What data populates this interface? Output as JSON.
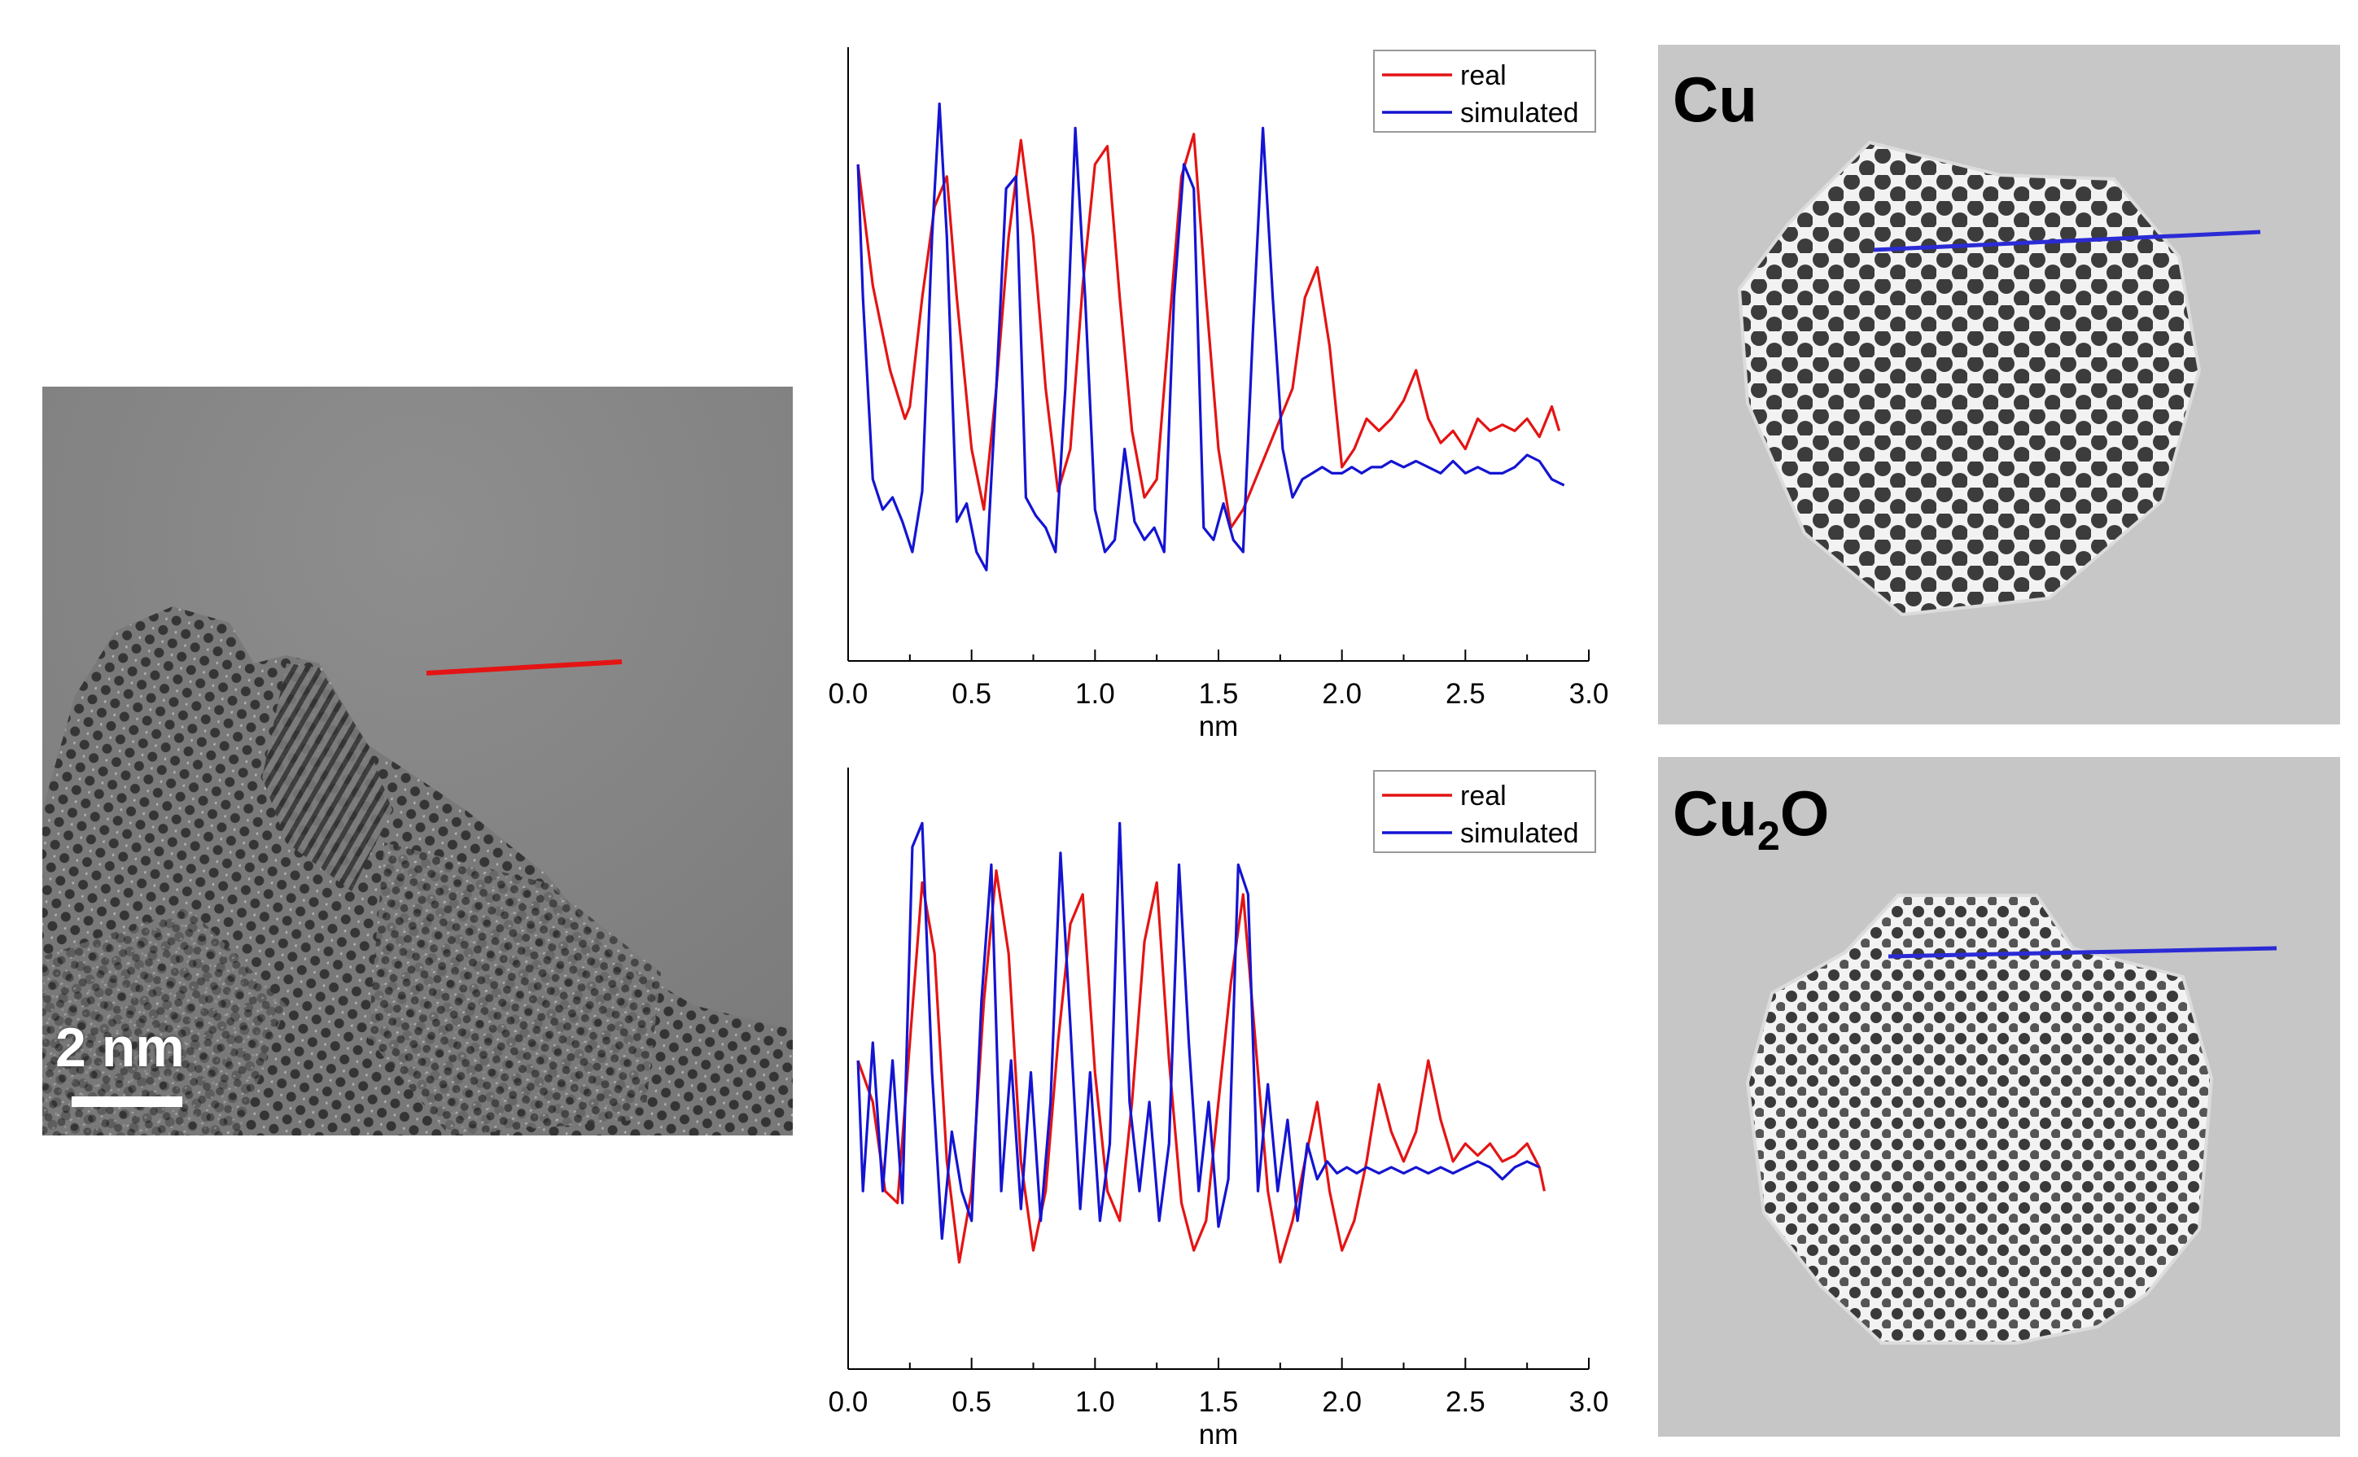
{
  "figure": {
    "tem_image": {
      "scale_bar_label": "2 nm",
      "profile_line_color": "#e41414"
    },
    "simulations": [
      {
        "label_main": "Cu",
        "label_sub": "",
        "label_tail": "",
        "profile_line_color": "#2b2bd6"
      },
      {
        "label_main": "Cu",
        "label_sub": "2",
        "label_tail": "O",
        "profile_line_color": "#2b2bd6"
      }
    ]
  },
  "chart_data": [
    {
      "type": "line",
      "title": "",
      "xlabel": "nm",
      "ylabel": "",
      "xlim": [
        0.0,
        3.0
      ],
      "ylim": [
        0,
        1
      ],
      "xticks": [
        "0.0",
        "0.5",
        "1.0",
        "1.5",
        "2.0",
        "2.5",
        "3.0"
      ],
      "legend": {
        "position": "top-right",
        "entries": [
          "real",
          "simulated"
        ]
      },
      "series": [
        {
          "name": "real",
          "color": "#e41414",
          "x": [
            0.04,
            0.1,
            0.17,
            0.23,
            0.25,
            0.3,
            0.35,
            0.4,
            0.44,
            0.5,
            0.55,
            0.6,
            0.65,
            0.7,
            0.75,
            0.8,
            0.85,
            0.9,
            0.95,
            1.0,
            1.05,
            1.1,
            1.15,
            1.2,
            1.25,
            1.3,
            1.35,
            1.4,
            1.45,
            1.5,
            1.55,
            1.6,
            1.65,
            1.7,
            1.75,
            1.8,
            1.85,
            1.9,
            1.95,
            2.0,
            2.05,
            2.1,
            2.15,
            2.2,
            2.25,
            2.3,
            2.35,
            2.4,
            2.45,
            2.5,
            2.55,
            2.6,
            2.65,
            2.7,
            2.75,
            2.8,
            2.85,
            2.88
          ],
          "y": [
            0.82,
            0.62,
            0.48,
            0.4,
            0.42,
            0.6,
            0.75,
            0.8,
            0.6,
            0.35,
            0.25,
            0.45,
            0.7,
            0.86,
            0.7,
            0.45,
            0.28,
            0.35,
            0.62,
            0.82,
            0.85,
            0.6,
            0.38,
            0.27,
            0.3,
            0.55,
            0.8,
            0.87,
            0.6,
            0.35,
            0.22,
            0.25,
            0.3,
            0.35,
            0.4,
            0.45,
            0.6,
            0.65,
            0.52,
            0.32,
            0.35,
            0.4,
            0.38,
            0.4,
            0.43,
            0.48,
            0.4,
            0.36,
            0.38,
            0.35,
            0.4,
            0.38,
            0.39,
            0.38,
            0.4,
            0.37,
            0.42,
            0.38
          ]
        },
        {
          "name": "simulated",
          "color": "#1414d2",
          "x": [
            0.04,
            0.06,
            0.1,
            0.14,
            0.18,
            0.22,
            0.26,
            0.3,
            0.34,
            0.37,
            0.4,
            0.44,
            0.48,
            0.52,
            0.56,
            0.6,
            0.64,
            0.68,
            0.72,
            0.76,
            0.8,
            0.84,
            0.88,
            0.92,
            0.96,
            1.0,
            1.04,
            1.08,
            1.12,
            1.16,
            1.2,
            1.24,
            1.28,
            1.32,
            1.36,
            1.4,
            1.44,
            1.48,
            1.52,
            1.56,
            1.6,
            1.64,
            1.68,
            1.72,
            1.76,
            1.8,
            1.84,
            1.88,
            1.92,
            1.96,
            2.0,
            2.04,
            2.08,
            2.12,
            2.16,
            2.2,
            2.25,
            2.3,
            2.35,
            2.4,
            2.45,
            2.5,
            2.55,
            2.6,
            2.65,
            2.7,
            2.75,
            2.8,
            2.85,
            2.9
          ],
          "y": [
            0.82,
            0.6,
            0.3,
            0.25,
            0.27,
            0.23,
            0.18,
            0.28,
            0.7,
            0.92,
            0.7,
            0.23,
            0.26,
            0.18,
            0.15,
            0.45,
            0.78,
            0.8,
            0.27,
            0.24,
            0.22,
            0.18,
            0.45,
            0.88,
            0.6,
            0.25,
            0.18,
            0.2,
            0.35,
            0.23,
            0.2,
            0.22,
            0.18,
            0.6,
            0.82,
            0.78,
            0.22,
            0.2,
            0.26,
            0.2,
            0.18,
            0.55,
            0.88,
            0.6,
            0.35,
            0.27,
            0.3,
            0.31,
            0.32,
            0.31,
            0.31,
            0.32,
            0.31,
            0.32,
            0.32,
            0.33,
            0.32,
            0.33,
            0.32,
            0.31,
            0.33,
            0.31,
            0.32,
            0.31,
            0.31,
            0.32,
            0.34,
            0.33,
            0.3,
            0.29
          ]
        }
      ]
    },
    {
      "type": "line",
      "title": "",
      "xlabel": "nm",
      "ylabel": "",
      "xlim": [
        0.0,
        3.0
      ],
      "ylim": [
        0,
        1
      ],
      "xticks": [
        "0.0",
        "0.5",
        "1.0",
        "1.5",
        "2.0",
        "2.5",
        "3.0"
      ],
      "legend": {
        "position": "top-right",
        "entries": [
          "real",
          "simulated"
        ]
      },
      "series": [
        {
          "name": "real",
          "color": "#e41414",
          "x": [
            0.04,
            0.1,
            0.15,
            0.2,
            0.25,
            0.3,
            0.35,
            0.4,
            0.45,
            0.5,
            0.55,
            0.6,
            0.65,
            0.7,
            0.75,
            0.8,
            0.85,
            0.9,
            0.95,
            1.0,
            1.05,
            1.1,
            1.15,
            1.2,
            1.25,
            1.3,
            1.35,
            1.4,
            1.45,
            1.5,
            1.55,
            1.6,
            1.65,
            1.7,
            1.75,
            1.8,
            1.85,
            1.9,
            1.95,
            2.0,
            2.05,
            2.1,
            2.15,
            2.2,
            2.25,
            2.3,
            2.35,
            2.4,
            2.45,
            2.5,
            2.55,
            2.6,
            2.65,
            2.7,
            2.75,
            2.8,
            2.82
          ],
          "y": [
            0.52,
            0.45,
            0.3,
            0.28,
            0.55,
            0.82,
            0.7,
            0.35,
            0.18,
            0.3,
            0.62,
            0.84,
            0.7,
            0.35,
            0.2,
            0.3,
            0.55,
            0.75,
            0.8,
            0.5,
            0.3,
            0.25,
            0.45,
            0.72,
            0.82,
            0.52,
            0.28,
            0.2,
            0.25,
            0.45,
            0.65,
            0.8,
            0.55,
            0.3,
            0.18,
            0.25,
            0.35,
            0.45,
            0.3,
            0.2,
            0.25,
            0.35,
            0.48,
            0.4,
            0.35,
            0.4,
            0.52,
            0.42,
            0.35,
            0.38,
            0.36,
            0.38,
            0.35,
            0.36,
            0.38,
            0.34,
            0.3
          ]
        },
        {
          "name": "simulated",
          "color": "#1414d2",
          "x": [
            0.04,
            0.06,
            0.1,
            0.14,
            0.18,
            0.22,
            0.26,
            0.3,
            0.34,
            0.38,
            0.42,
            0.46,
            0.5,
            0.54,
            0.58,
            0.62,
            0.66,
            0.7,
            0.74,
            0.78,
            0.82,
            0.86,
            0.9,
            0.94,
            0.98,
            1.02,
            1.06,
            1.1,
            1.14,
            1.18,
            1.22,
            1.26,
            1.3,
            1.34,
            1.38,
            1.42,
            1.46,
            1.5,
            1.54,
            1.58,
            1.62,
            1.66,
            1.7,
            1.74,
            1.78,
            1.82,
            1.86,
            1.9,
            1.94,
            1.98,
            2.02,
            2.06,
            2.1,
            2.15,
            2.2,
            2.25,
            2.3,
            2.35,
            2.4,
            2.45,
            2.5,
            2.55,
            2.6,
            2.65,
            2.7,
            2.75,
            2.8
          ],
          "y": [
            0.52,
            0.3,
            0.55,
            0.3,
            0.52,
            0.28,
            0.88,
            0.92,
            0.5,
            0.22,
            0.4,
            0.3,
            0.25,
            0.62,
            0.85,
            0.3,
            0.52,
            0.27,
            0.5,
            0.25,
            0.45,
            0.87,
            0.58,
            0.27,
            0.5,
            0.25,
            0.38,
            0.92,
            0.45,
            0.3,
            0.45,
            0.25,
            0.38,
            0.85,
            0.55,
            0.3,
            0.45,
            0.24,
            0.32,
            0.85,
            0.8,
            0.3,
            0.48,
            0.3,
            0.42,
            0.25,
            0.38,
            0.32,
            0.35,
            0.33,
            0.34,
            0.33,
            0.34,
            0.33,
            0.34,
            0.33,
            0.34,
            0.33,
            0.34,
            0.33,
            0.34,
            0.35,
            0.34,
            0.32,
            0.34,
            0.35,
            0.34
          ]
        }
      ]
    }
  ]
}
